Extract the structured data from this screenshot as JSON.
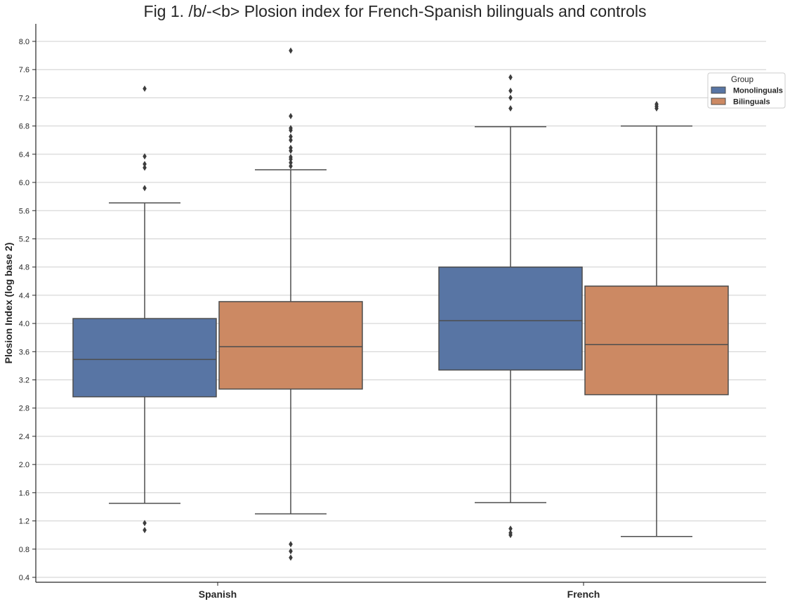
{
  "chart_data": {
    "type": "box",
    "title": "Fig 1. /b/-<b> Plosion index for French-Spanish bilinguals and controls",
    "xlabel": "",
    "ylabel": "Plosion Index (log base 2)",
    "ylim": [
      0.35,
      8.25
    ],
    "yticks": [
      "0.4",
      "0.8",
      "1.2",
      "1.6",
      "2.0",
      "2.4",
      "2.8",
      "3.2",
      "3.6",
      "4.0",
      "4.4",
      "4.8",
      "5.2",
      "5.6",
      "6.0",
      "6.4",
      "6.8",
      "7.2",
      "7.6",
      "8.0"
    ],
    "grid": "horizontal",
    "categories": [
      "Spanish",
      "French"
    ],
    "legend": {
      "title": "Group",
      "placement": "upper-right"
    },
    "series": [
      {
        "name": "Monolinguals",
        "color": "#5875a4",
        "boxes": [
          {
            "category": "Spanish",
            "whisker_low": 1.45,
            "q1": 2.96,
            "median": 3.49,
            "q3": 4.07,
            "whisker_high": 5.71,
            "outliers": [
              1.07,
              1.17,
              5.92,
              6.21,
              6.26,
              6.37,
              7.33
            ]
          },
          {
            "category": "French",
            "whisker_low": 1.46,
            "q1": 3.34,
            "median": 4.04,
            "q3": 4.8,
            "whisker_high": 6.79,
            "outliers": [
              1.0,
              1.03,
              1.09,
              7.05,
              7.2,
              7.3,
              7.49
            ]
          }
        ]
      },
      {
        "name": "Bilinguals",
        "color": "#cc8963",
        "boxes": [
          {
            "category": "Spanish",
            "whisker_low": 1.3,
            "q1": 3.07,
            "median": 3.67,
            "q3": 4.31,
            "whisker_high": 6.18,
            "outliers": [
              0.68,
              0.77,
              0.87,
              6.23,
              6.28,
              6.33,
              6.36,
              6.45,
              6.49,
              6.6,
              6.65,
              6.74,
              6.77,
              6.94,
              7.87
            ]
          },
          {
            "category": "French",
            "whisker_low": 0.98,
            "q1": 2.99,
            "median": 3.7,
            "q3": 4.53,
            "whisker_high": 6.8,
            "outliers": [
              7.05,
              7.08,
              7.11
            ]
          }
        ]
      }
    ]
  }
}
